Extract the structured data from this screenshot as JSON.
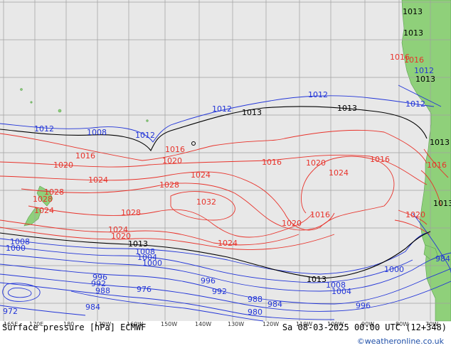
{
  "map": {
    "title": "Surface pressure [hPa] ECMWF",
    "valid_time": "Sa 08-03-2025 00:00 UTC (12+348)",
    "credit": "©weatheronline.co.uk",
    "colors": {
      "land": "#8fd07a",
      "ocean_shade": "#e8e8e8",
      "grid": "#a0a0a0",
      "high_isobar": "#e8322a",
      "low_isobar": "#2235d8",
      "ref_isobar": "#000000"
    },
    "lon_labels": [
      "165E",
      "170E",
      "180",
      "170W",
      "160W",
      "150W",
      "140W",
      "130W",
      "120W",
      "110W",
      "100W",
      "90W",
      "80W",
      "70W"
    ],
    "isobar_labels": [
      {
        "text": "1013",
        "kind": "ref"
      },
      {
        "text": "1013",
        "kind": "ref"
      },
      {
        "text": "1013",
        "kind": "ref"
      },
      {
        "text": "1013",
        "kind": "ref"
      },
      {
        "text": "1013",
        "kind": "ref"
      },
      {
        "text": "1013",
        "kind": "ref"
      },
      {
        "text": "1013",
        "kind": "ref"
      },
      {
        "text": "1013",
        "kind": "ref"
      },
      {
        "text": "1013",
        "kind": "ref"
      },
      {
        "text": "1012",
        "kind": "low"
      },
      {
        "text": "1012",
        "kind": "low"
      },
      {
        "text": "1012",
        "kind": "low"
      },
      {
        "text": "1012",
        "kind": "low"
      },
      {
        "text": "1012",
        "kind": "low"
      },
      {
        "text": "1012",
        "kind": "low"
      },
      {
        "text": "1008",
        "kind": "low"
      },
      {
        "text": "1016",
        "kind": "high"
      },
      {
        "text": "1016",
        "kind": "high"
      },
      {
        "text": "1016",
        "kind": "high"
      },
      {
        "text": "1016",
        "kind": "high"
      },
      {
        "text": "1016",
        "kind": "high"
      },
      {
        "text": "1016",
        "kind": "high"
      },
      {
        "text": "1016",
        "kind": "high"
      },
      {
        "text": "1016",
        "kind": "high"
      },
      {
        "text": "1020",
        "kind": "high"
      },
      {
        "text": "1020",
        "kind": "high"
      },
      {
        "text": "1020",
        "kind": "high"
      },
      {
        "text": "1020",
        "kind": "high"
      },
      {
        "text": "1020",
        "kind": "high"
      },
      {
        "text": "1020",
        "kind": "high"
      },
      {
        "text": "1024",
        "kind": "high"
      },
      {
        "text": "1024",
        "kind": "high"
      },
      {
        "text": "1024",
        "kind": "high"
      },
      {
        "text": "1024",
        "kind": "high"
      },
      {
        "text": "1024",
        "kind": "high"
      },
      {
        "text": "1024",
        "kind": "high"
      },
      {
        "text": "1028",
        "kind": "high"
      },
      {
        "text": "1028",
        "kind": "high"
      },
      {
        "text": "1028",
        "kind": "high"
      },
      {
        "text": "1028",
        "kind": "high"
      },
      {
        "text": "1032",
        "kind": "high"
      },
      {
        "text": "1008",
        "kind": "low"
      },
      {
        "text": "1008",
        "kind": "low"
      },
      {
        "text": "1008",
        "kind": "low"
      },
      {
        "text": "1004",
        "kind": "low"
      },
      {
        "text": "1004",
        "kind": "low"
      },
      {
        "text": "1000",
        "kind": "low"
      },
      {
        "text": "1000",
        "kind": "low"
      },
      {
        "text": "1000",
        "kind": "low"
      },
      {
        "text": "996",
        "kind": "low"
      },
      {
        "text": "996",
        "kind": "low"
      },
      {
        "text": "996",
        "kind": "low"
      },
      {
        "text": "992",
        "kind": "low"
      },
      {
        "text": "992",
        "kind": "low"
      },
      {
        "text": "988",
        "kind": "low"
      },
      {
        "text": "988",
        "kind": "low"
      },
      {
        "text": "984",
        "kind": "low"
      },
      {
        "text": "984",
        "kind": "low"
      },
      {
        "text": "984",
        "kind": "low"
      },
      {
        "text": "980",
        "kind": "low"
      },
      {
        "text": "976",
        "kind": "low"
      },
      {
        "text": "972",
        "kind": "low"
      }
    ]
  }
}
